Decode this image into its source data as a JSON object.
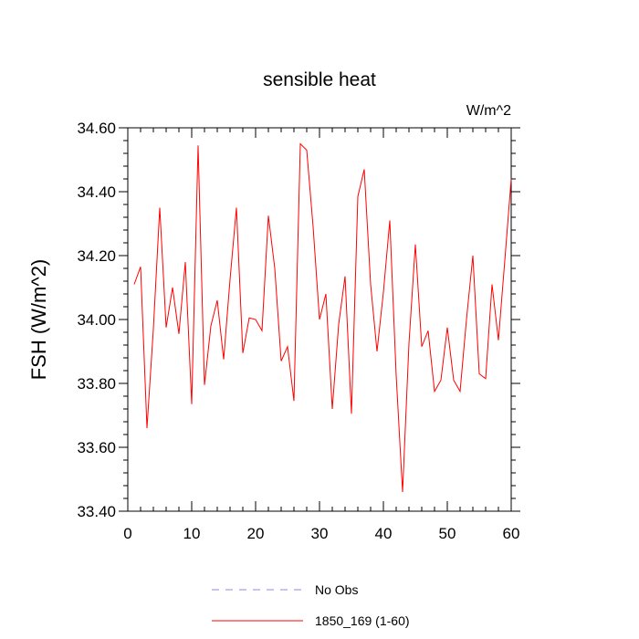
{
  "chart_data": {
    "type": "line",
    "title": "sensible heat",
    "units_label": "W/m^2",
    "ylabel": "FSH  (W/m^2)",
    "xlabel": "",
    "xlim": [
      0,
      60
    ],
    "ylim": [
      33.4,
      34.6
    ],
    "xticks": [
      0,
      10,
      20,
      30,
      40,
      50,
      60
    ],
    "yticks": [
      33.4,
      33.6,
      33.8,
      34.0,
      34.2,
      34.4,
      34.6
    ],
    "ytick_labels": [
      "33.40",
      "33.60",
      "33.80",
      "34.00",
      "34.20",
      "34.40",
      "34.60"
    ],
    "grid": false,
    "legend_position": "bottom-center",
    "series": [
      {
        "name": "No Obs",
        "color": "#8888ee",
        "dash": true,
        "x": [],
        "values": []
      },
      {
        "name": "1850_169 (1-60)",
        "color": "#ff0000",
        "dash": false,
        "x": [
          1,
          2,
          3,
          4,
          5,
          6,
          7,
          8,
          9,
          10,
          11,
          12,
          13,
          14,
          15,
          16,
          17,
          18,
          19,
          20,
          21,
          22,
          23,
          24,
          25,
          26,
          27,
          28,
          29,
          30,
          31,
          32,
          33,
          34,
          35,
          36,
          37,
          38,
          39,
          40,
          41,
          42,
          43,
          44,
          45,
          46,
          47,
          48,
          49,
          50,
          51,
          52,
          53,
          54,
          55,
          56,
          57,
          58,
          59,
          60
        ],
        "values": [
          34.11,
          34.165,
          33.66,
          33.97,
          34.35,
          33.975,
          34.1,
          33.955,
          34.18,
          33.735,
          34.545,
          33.795,
          33.98,
          34.06,
          33.875,
          34.125,
          34.35,
          33.895,
          34.005,
          34.0,
          33.965,
          34.325,
          34.16,
          33.87,
          33.915,
          33.745,
          34.55,
          34.53,
          34.29,
          34.0,
          34.08,
          33.72,
          33.985,
          34.135,
          33.705,
          34.385,
          34.47,
          34.11,
          33.9,
          34.085,
          34.31,
          33.825,
          33.46,
          33.925,
          34.235,
          33.915,
          33.965,
          33.775,
          33.81,
          33.975,
          33.81,
          33.775,
          34.0,
          34.2,
          33.83,
          33.815,
          34.11,
          33.935,
          34.185,
          34.44
        ]
      }
    ]
  }
}
